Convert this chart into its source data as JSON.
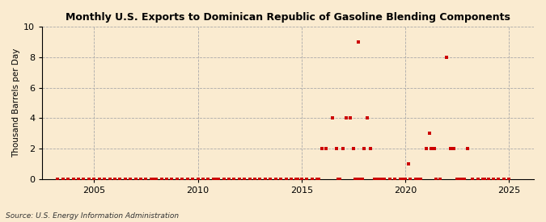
{
  "title": "Monthly U.S. Exports to Dominican Republic of Gasoline Blending Components",
  "ylabel": "Thousand Barrels per Day",
  "source": "Source: U.S. Energy Information Administration",
  "background_color": "#faebd0",
  "dot_color": "#cc0000",
  "ylim": [
    0,
    10
  ],
  "yticks": [
    0,
    2,
    4,
    6,
    8,
    10
  ],
  "xlim_start": 2002.5,
  "xlim_end": 2026.2,
  "xticks": [
    2005,
    2010,
    2015,
    2020,
    2025
  ],
  "data_points": [
    [
      2003.25,
      0
    ],
    [
      2003.5,
      0
    ],
    [
      2003.75,
      0
    ],
    [
      2004.0,
      0
    ],
    [
      2004.25,
      0
    ],
    [
      2004.5,
      0
    ],
    [
      2004.75,
      0
    ],
    [
      2005.0,
      0
    ],
    [
      2005.25,
      0
    ],
    [
      2005.5,
      0
    ],
    [
      2005.75,
      0
    ],
    [
      2006.0,
      0
    ],
    [
      2006.25,
      0
    ],
    [
      2006.5,
      0
    ],
    [
      2006.75,
      0
    ],
    [
      2007.0,
      0
    ],
    [
      2007.25,
      0
    ],
    [
      2007.5,
      0
    ],
    [
      2007.75,
      0
    ],
    [
      2007.83,
      0
    ],
    [
      2008.0,
      0
    ],
    [
      2008.25,
      0
    ],
    [
      2008.5,
      0
    ],
    [
      2008.75,
      0
    ],
    [
      2009.0,
      0
    ],
    [
      2009.25,
      0
    ],
    [
      2009.5,
      0
    ],
    [
      2009.75,
      0
    ],
    [
      2010.0,
      0
    ],
    [
      2010.25,
      0
    ],
    [
      2010.5,
      0
    ],
    [
      2010.75,
      0
    ],
    [
      2010.83,
      0
    ],
    [
      2011.0,
      0
    ],
    [
      2011.25,
      0
    ],
    [
      2011.5,
      0
    ],
    [
      2011.75,
      0
    ],
    [
      2012.0,
      0
    ],
    [
      2012.25,
      0
    ],
    [
      2012.5,
      0
    ],
    [
      2012.75,
      0
    ],
    [
      2013.0,
      0
    ],
    [
      2013.25,
      0
    ],
    [
      2013.5,
      0
    ],
    [
      2013.75,
      0
    ],
    [
      2014.0,
      0
    ],
    [
      2014.25,
      0
    ],
    [
      2014.5,
      0
    ],
    [
      2014.75,
      0
    ],
    [
      2014.83,
      0
    ],
    [
      2015.0,
      0
    ],
    [
      2015.25,
      0
    ],
    [
      2015.5,
      0
    ],
    [
      2015.75,
      0
    ],
    [
      2015.83,
      0
    ],
    [
      2016.0,
      2
    ],
    [
      2016.17,
      2
    ],
    [
      2016.5,
      4
    ],
    [
      2016.67,
      2
    ],
    [
      2016.75,
      0
    ],
    [
      2016.83,
      0
    ],
    [
      2017.0,
      2
    ],
    [
      2017.17,
      4
    ],
    [
      2017.33,
      4
    ],
    [
      2017.5,
      2
    ],
    [
      2017.58,
      0
    ],
    [
      2017.67,
      0
    ],
    [
      2017.75,
      9
    ],
    [
      2017.83,
      0
    ],
    [
      2017.92,
      0
    ],
    [
      2018.0,
      2
    ],
    [
      2018.17,
      4
    ],
    [
      2018.33,
      2
    ],
    [
      2018.5,
      0
    ],
    [
      2018.67,
      0
    ],
    [
      2018.75,
      0
    ],
    [
      2018.83,
      0
    ],
    [
      2019.0,
      0
    ],
    [
      2019.25,
      0
    ],
    [
      2019.5,
      0
    ],
    [
      2019.75,
      0
    ],
    [
      2019.83,
      0
    ],
    [
      2020.0,
      0
    ],
    [
      2020.17,
      1
    ],
    [
      2020.25,
      0
    ],
    [
      2020.5,
      0
    ],
    [
      2020.67,
      0
    ],
    [
      2020.75,
      0
    ],
    [
      2021.0,
      2
    ],
    [
      2021.17,
      3
    ],
    [
      2021.25,
      2
    ],
    [
      2021.42,
      2
    ],
    [
      2021.5,
      0
    ],
    [
      2021.67,
      0
    ],
    [
      2022.0,
      8
    ],
    [
      2022.17,
      2
    ],
    [
      2022.33,
      2
    ],
    [
      2022.5,
      0
    ],
    [
      2022.67,
      0
    ],
    [
      2022.75,
      0
    ],
    [
      2022.83,
      0
    ],
    [
      2023.0,
      2
    ],
    [
      2023.25,
      0
    ],
    [
      2023.5,
      0
    ],
    [
      2023.75,
      0
    ],
    [
      2023.83,
      0
    ],
    [
      2024.0,
      0
    ],
    [
      2024.25,
      0
    ],
    [
      2024.5,
      0
    ],
    [
      2024.75,
      0
    ],
    [
      2025.0,
      0
    ]
  ]
}
